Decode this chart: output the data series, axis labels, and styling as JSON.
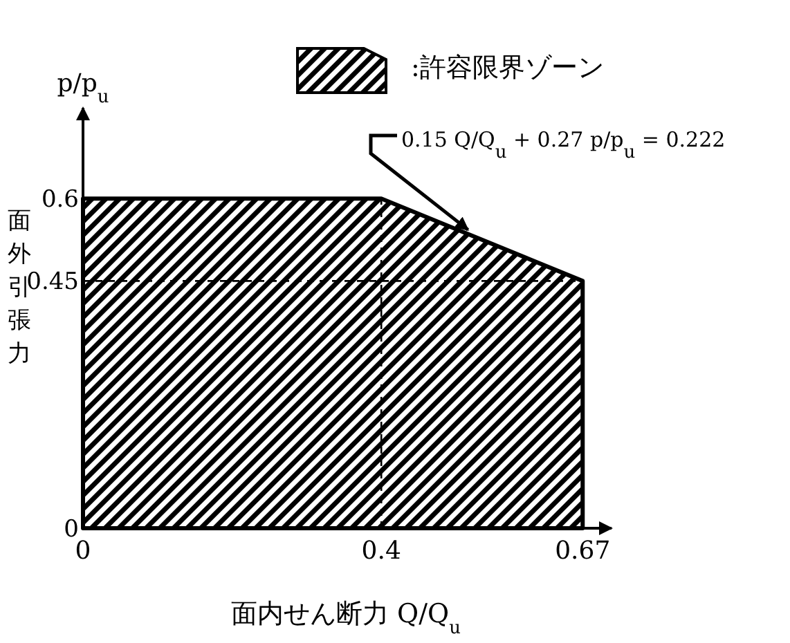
{
  "chart_data": {
    "type": "area",
    "ylabel": "p/p$_{u}$",
    "xlabel": "面内せん断力 Q/Q$_{u}$",
    "y2label": "面外引張力",
    "x": [
      0,
      0.4,
      0.67
    ],
    "series": [
      {
        "name": ":許容限界ゾーン",
        "color": "#000000",
        "values": [
          0.6,
          0.6,
          0.45
        ]
      }
    ],
    "xlim": [
      0,
      0.705
    ],
    "ylim": [
      0,
      0.76
    ],
    "xticks": [
      0,
      0.4,
      0.67
    ],
    "yticks": [
      0,
      0.45,
      0.6
    ],
    "ref_lines": [
      {
        "axis": "x",
        "value": 0.4,
        "line_style": "dashed"
      },
      {
        "axis": "y",
        "value": 0.45,
        "line_style": "dashed"
      }
    ],
    "annotations": [
      {
        "text": "0.15 Q/Q$_{u}$ + 0.27 p/p$_{u}$ = 0.222",
        "x": 0.52,
        "y": 0.533
      }
    ],
    "legend": "top"
  }
}
